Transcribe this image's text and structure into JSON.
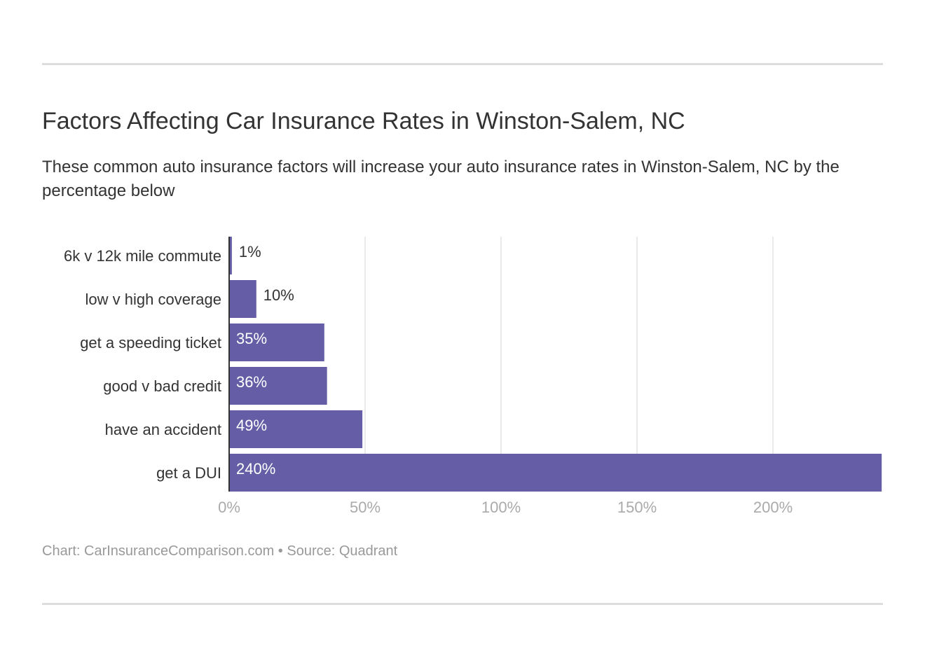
{
  "chart_data": {
    "type": "bar",
    "orientation": "horizontal",
    "title": "Factors Affecting Car Insurance Rates in Winston-Salem, NC",
    "subtitle": "These common auto insurance factors will increase your auto insurance rates in Winston-Salem, NC by the percentage below",
    "categories": [
      "6k v 12k mile commute",
      "low v high coverage",
      "get a speeding ticket",
      "good v bad credit",
      "have an accident",
      "get a DUI"
    ],
    "values": [
      1,
      10,
      35,
      36,
      49,
      240
    ],
    "value_labels": [
      "1%",
      "10%",
      "35%",
      "36%",
      "49%",
      "240%"
    ],
    "xticks": [
      0,
      50,
      100,
      150,
      200
    ],
    "xtick_labels": [
      "0%",
      "50%",
      "100%",
      "150%",
      "200%"
    ],
    "xlim": [
      0,
      240
    ],
    "grid": true,
    "xlabel": "",
    "ylabel": "",
    "bar_color": "#655ea6",
    "footer": "Chart: CarInsuranceComparison.com • Source: Quadrant"
  }
}
